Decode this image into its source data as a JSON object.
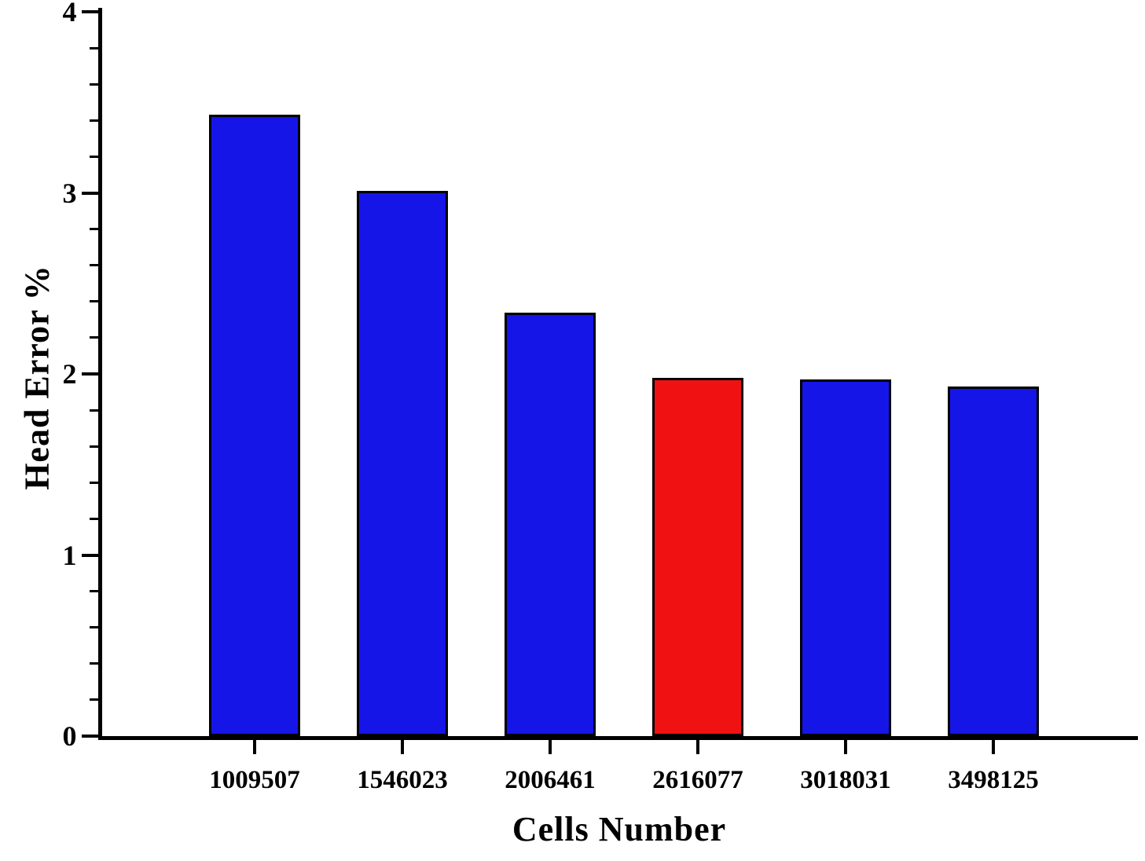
{
  "chart_data": {
    "type": "bar",
    "title": "",
    "xlabel": "Cells Number",
    "ylabel": "Head Error %",
    "categories": [
      "1009507",
      "1546023",
      "2006461",
      "2616077",
      "3018031",
      "3498125"
    ],
    "values": [
      3.43,
      3.01,
      2.34,
      1.98,
      1.97,
      1.93
    ],
    "bar_colors": [
      "#1515E8",
      "#1515E8",
      "#1515E8",
      "#F01212",
      "#1515E8",
      "#1515E8"
    ],
    "highlight_category": "2616077",
    "ylim": [
      0,
      4
    ],
    "yticks": [
      0,
      1,
      2,
      3,
      4
    ],
    "minor_tick_step": 0.2,
    "grid": false,
    "legend": false,
    "colors": {
      "bar_default": "#1515E8",
      "bar_highlight": "#F01212",
      "axis": "#000000",
      "background": "#FFFFFF"
    }
  }
}
